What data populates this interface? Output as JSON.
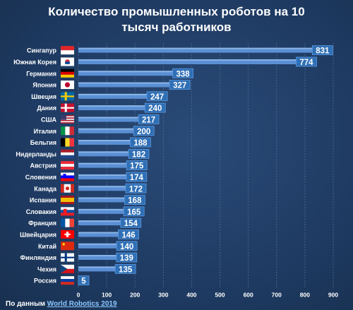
{
  "title_line1": "Количество промышленных роботов на 10",
  "title_line2": "тысяч работников",
  "source_prefix": "По данным",
  "source_link": "World Robotics 2019",
  "colors": {
    "background": "#1f3b63",
    "bar": "#5b8fd4",
    "bar_highlight": "#9cc4f0",
    "label_box": "#2f6fb5",
    "grid": "#4e6d96",
    "text": "#ffffff"
  },
  "chart_data": {
    "type": "bar",
    "orientation": "horizontal",
    "title": "Количество промышленных роботов на 10 тысяч работников",
    "categories": [
      "Сингапур",
      "Южная Корея",
      "Германия",
      "Япония",
      "Швеция",
      "Дания",
      "США",
      "Италия",
      "Бельгия",
      "Нидерланды",
      "Австрия",
      "Словения",
      "Канада",
      "Испания",
      "Словакия",
      "Франция",
      "Швейцария",
      "Китай",
      "Финляндия",
      "Чехия",
      "Россия"
    ],
    "flag_icons": [
      "flag-singapore-icon",
      "flag-south-korea-icon",
      "flag-germany-icon",
      "flag-japan-icon",
      "flag-sweden-icon",
      "flag-denmark-icon",
      "flag-usa-icon",
      "flag-italy-icon",
      "flag-belgium-icon",
      "flag-netherlands-icon",
      "flag-austria-icon",
      "flag-slovenia-icon",
      "flag-canada-icon",
      "flag-spain-icon",
      "flag-slovakia-icon",
      "flag-france-icon",
      "flag-switzerland-icon",
      "flag-china-icon",
      "flag-finland-icon",
      "flag-czechia-icon",
      "flag-russia-icon"
    ],
    "values": [
      831,
      774,
      338,
      327,
      247,
      240,
      217,
      200,
      188,
      182,
      175,
      174,
      172,
      168,
      165,
      154,
      146,
      140,
      139,
      135,
      5
    ],
    "xlim": [
      0,
      900
    ],
    "xticks": [
      0,
      100,
      200,
      300,
      400,
      500,
      600,
      700,
      800,
      900
    ],
    "grid": true,
    "legend": "none"
  }
}
